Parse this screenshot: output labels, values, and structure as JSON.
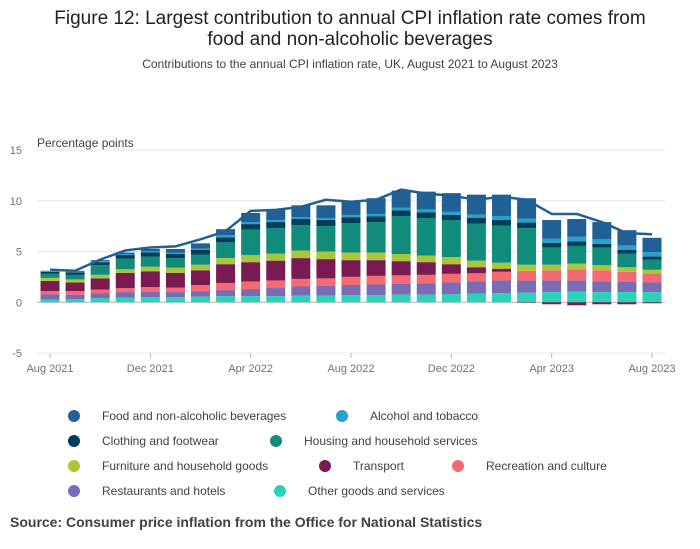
{
  "title_line1": "Figure 12: Largest contribution to annual CPI inflation rate comes from",
  "title_line2": "food and non-alcoholic beverages",
  "subtitle": "Contributions to the annual CPI inflation rate, UK, August 2021 to August 2023",
  "source": "Source: Consumer price inflation from the Office for National Statistics",
  "chart_data": {
    "type": "bar",
    "stacked": true,
    "ylabel": "Percentage points",
    "ylim": [
      -5,
      15
    ],
    "yticks": [
      -5,
      0,
      5,
      10,
      15
    ],
    "x_tick_labels": [
      "Aug 2021",
      "Dec 2021",
      "Apr 2022",
      "Aug 2022",
      "Dec 2022",
      "Apr 2023",
      "Aug 2023"
    ],
    "x_tick_indices": [
      0,
      4,
      8,
      12,
      16,
      20,
      24
    ],
    "categories": [
      "Aug 2021",
      "Sep 2021",
      "Oct 2021",
      "Nov 2021",
      "Dec 2021",
      "Jan 2022",
      "Feb 2022",
      "Mar 2022",
      "Apr 2022",
      "May 2022",
      "Jun 2022",
      "Jul 2022",
      "Aug 2022",
      "Sep 2022",
      "Oct 2022",
      "Nov 2022",
      "Dec 2022",
      "Jan 2023",
      "Feb 2023",
      "Mar 2023",
      "Apr 2023",
      "May 2023",
      "Jun 2023",
      "Jul 2023",
      "Aug 2023"
    ],
    "series": [
      {
        "name": "Other goods and services",
        "color": "#2ad3b8",
        "values": [
          0.25,
          0.3,
          0.4,
          0.45,
          0.5,
          0.5,
          0.55,
          0.6,
          0.6,
          0.6,
          0.65,
          0.65,
          0.7,
          0.7,
          0.75,
          0.75,
          0.8,
          0.85,
          0.9,
          0.95,
          1.0,
          1.05,
          1.0,
          1.0,
          1.0
        ]
      },
      {
        "name": "Restaurants and hotels",
        "color": "#7a6bb5",
        "values": [
          0.55,
          0.45,
          0.5,
          0.55,
          0.55,
          0.5,
          0.55,
          0.6,
          0.7,
          0.8,
          0.9,
          0.95,
          1.0,
          1.05,
          1.05,
          1.1,
          1.15,
          1.2,
          1.25,
          1.2,
          1.15,
          1.1,
          1.05,
          1.0,
          0.95
        ]
      },
      {
        "name": "Recreation and culture",
        "color": "#f46a72",
        "values": [
          0.3,
          0.35,
          0.35,
          0.4,
          0.45,
          0.45,
          0.6,
          0.7,
          0.75,
          0.75,
          0.75,
          0.75,
          0.8,
          0.85,
          0.85,
          0.85,
          0.85,
          0.8,
          0.85,
          0.95,
          1.0,
          1.1,
          1.1,
          1.0,
          0.9
        ]
      },
      {
        "name": "Transport",
        "color": "#791a52",
        "values": [
          1.0,
          0.85,
          1.1,
          1.5,
          1.55,
          1.45,
          1.45,
          1.85,
          1.9,
          1.95,
          2.05,
          1.9,
          1.65,
          1.55,
          1.4,
          1.25,
          0.95,
          0.6,
          0.3,
          -0.05,
          -0.2,
          -0.3,
          -0.2,
          -0.2,
          -0.1
        ]
      },
      {
        "name": "Furniture and household goods",
        "color": "#a8c639",
        "values": [
          0.3,
          0.3,
          0.35,
          0.35,
          0.45,
          0.5,
          0.55,
          0.6,
          0.7,
          0.7,
          0.75,
          0.75,
          0.75,
          0.75,
          0.7,
          0.65,
          0.7,
          0.65,
          0.6,
          0.6,
          0.55,
          0.55,
          0.5,
          0.45,
          0.35
        ]
      },
      {
        "name": "Housing and household services",
        "color": "#118c7b",
        "values": [
          0.4,
          0.45,
          0.95,
          1.05,
          1.0,
          0.95,
          1.0,
          1.55,
          2.5,
          2.5,
          2.5,
          2.5,
          2.9,
          3.0,
          3.75,
          3.7,
          3.65,
          3.65,
          3.65,
          3.6,
          1.7,
          1.75,
          1.75,
          1.35,
          1.0
        ]
      },
      {
        "name": "Clothing and footwear",
        "color": "#003c57",
        "values": [
          0.2,
          0.25,
          0.3,
          0.35,
          0.4,
          0.4,
          0.45,
          0.5,
          0.55,
          0.6,
          0.6,
          0.6,
          0.55,
          0.55,
          0.55,
          0.55,
          0.5,
          0.55,
          0.55,
          0.55,
          0.45,
          0.45,
          0.35,
          0.35,
          0.3
        ]
      },
      {
        "name": "Alcohol and tobacco",
        "color": "#27a0cc",
        "values": [
          0.05,
          0.05,
          0.1,
          0.1,
          0.15,
          0.15,
          0.15,
          0.2,
          0.2,
          0.2,
          0.2,
          0.2,
          0.25,
          0.25,
          0.25,
          0.3,
          0.3,
          0.35,
          0.4,
          0.4,
          0.4,
          0.45,
          0.45,
          0.45,
          0.45
        ]
      },
      {
        "name": "Food and non-alcoholic beverages",
        "color": "#206095",
        "values": [
          0.05,
          0.1,
          0.1,
          0.15,
          0.2,
          0.35,
          0.5,
          0.6,
          0.9,
          1.0,
          1.15,
          1.25,
          1.4,
          1.55,
          1.7,
          1.75,
          1.85,
          1.95,
          2.1,
          2.0,
          1.85,
          1.75,
          1.7,
          1.5,
          1.4
        ]
      }
    ],
    "total_line": {
      "color": "#206095",
      "values": [
        3.2,
        3.1,
        4.2,
        5.1,
        5.4,
        5.5,
        6.2,
        7.0,
        9.0,
        9.1,
        9.4,
        10.1,
        9.9,
        10.1,
        11.1,
        10.7,
        10.5,
        10.1,
        10.4,
        10.1,
        8.7,
        8.7,
        7.9,
        6.8,
        6.7
      ]
    }
  }
}
